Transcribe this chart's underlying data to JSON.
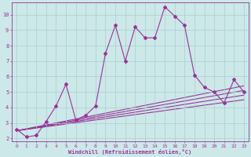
{
  "title": "",
  "xlabel": "Windchill (Refroidissement éolien,°C)",
  "ylabel": "",
  "background_color": "#cce8e8",
  "grid_color": "#aacfcf",
  "line_color": "#993399",
  "xlim": [
    -0.5,
    23.5
  ],
  "ylim": [
    1.8,
    10.8
  ],
  "yticks": [
    2,
    3,
    4,
    5,
    6,
    7,
    8,
    9,
    10
  ],
  "xticks": [
    0,
    1,
    2,
    3,
    4,
    5,
    6,
    7,
    8,
    9,
    10,
    11,
    12,
    13,
    14,
    15,
    16,
    17,
    18,
    19,
    20,
    21,
    22,
    23
  ],
  "series1_x": [
    0,
    1,
    2,
    3,
    4,
    5,
    6,
    7,
    8,
    9,
    10,
    11,
    12,
    13,
    14,
    15,
    16,
    17,
    18,
    19,
    20,
    21,
    22,
    23
  ],
  "series1_y": [
    2.6,
    2.1,
    2.2,
    3.1,
    4.1,
    5.5,
    3.2,
    3.5,
    4.1,
    7.5,
    9.3,
    7.0,
    9.2,
    8.5,
    8.5,
    10.5,
    9.9,
    9.3,
    6.1,
    5.3,
    5.0,
    4.3,
    5.8,
    5.0
  ],
  "ref_lines": [
    {
      "x": [
        0,
        23
      ],
      "y": [
        2.5,
        4.5
      ]
    },
    {
      "x": [
        0,
        23
      ],
      "y": [
        2.5,
        4.8
      ]
    },
    {
      "x": [
        0,
        23
      ],
      "y": [
        2.5,
        5.1
      ]
    },
    {
      "x": [
        0,
        23
      ],
      "y": [
        2.5,
        5.4
      ]
    }
  ],
  "marker": "D",
  "marker_size": 2.0,
  "linewidth": 0.8
}
